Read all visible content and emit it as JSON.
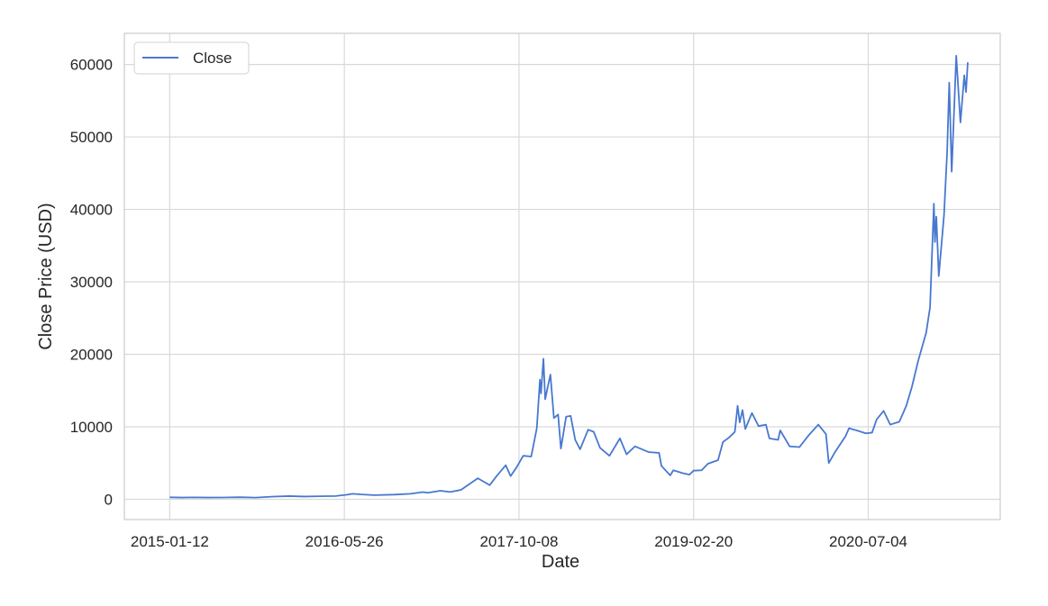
{
  "chart_data": {
    "type": "line",
    "title": "",
    "xlabel": "Date",
    "ylabel": "Close Price (USD)",
    "x_tick_labels": [
      "2015-01-12",
      "2016-05-26",
      "2017-10-08",
      "2019-02-20",
      "2020-07-04"
    ],
    "y_tick_labels": [
      "0",
      "10000",
      "20000",
      "30000",
      "40000",
      "50000",
      "60000"
    ],
    "xlim": [
      "2014-09-04",
      "2021-07-17"
    ],
    "ylim": [
      -2800,
      64300
    ],
    "grid": true,
    "legend_position": "top-left",
    "series": [
      {
        "name": "Close",
        "color": "#4878d0",
        "points": [
          [
            "2015-01-12",
            267
          ],
          [
            "2015-02-15",
            234
          ],
          [
            "2015-03-20",
            261
          ],
          [
            "2015-05-01",
            236
          ],
          [
            "2015-06-15",
            245
          ],
          [
            "2015-08-01",
            280
          ],
          [
            "2015-09-15",
            230
          ],
          [
            "2015-11-05",
            370
          ],
          [
            "2015-12-20",
            440
          ],
          [
            "2016-02-01",
            375
          ],
          [
            "2016-03-15",
            415
          ],
          [
            "2016-05-01",
            450
          ],
          [
            "2016-06-01",
            620
          ],
          [
            "2016-06-18",
            760
          ],
          [
            "2016-07-15",
            660
          ],
          [
            "2016-08-20",
            575
          ],
          [
            "2016-10-15",
            640
          ],
          [
            "2016-12-01",
            760
          ],
          [
            "2017-01-05",
            990
          ],
          [
            "2017-01-20",
            900
          ],
          [
            "2017-02-25",
            1180
          ],
          [
            "2017-03-25",
            1000
          ],
          [
            "2017-04-25",
            1300
          ],
          [
            "2017-05-25",
            2300
          ],
          [
            "2017-06-12",
            2900
          ],
          [
            "2017-07-16",
            1950
          ],
          [
            "2017-08-05",
            3200
          ],
          [
            "2017-08-31",
            4700
          ],
          [
            "2017-09-14",
            3200
          ],
          [
            "2017-10-01",
            4400
          ],
          [
            "2017-10-20",
            6000
          ],
          [
            "2017-11-12",
            5900
          ],
          [
            "2017-11-28",
            9800
          ],
          [
            "2017-12-07",
            16500
          ],
          [
            "2017-12-10",
            14600
          ],
          [
            "2017-12-17",
            19400
          ],
          [
            "2017-12-22",
            13800
          ],
          [
            "2017-12-28",
            15200
          ],
          [
            "2018-01-06",
            17200
          ],
          [
            "2018-01-16",
            11200
          ],
          [
            "2018-01-28",
            11700
          ],
          [
            "2018-02-05",
            7000
          ],
          [
            "2018-02-20",
            11400
          ],
          [
            "2018-03-05",
            11500
          ],
          [
            "2018-03-18",
            8200
          ],
          [
            "2018-04-01",
            6900
          ],
          [
            "2018-04-24",
            9600
          ],
          [
            "2018-05-10",
            9300
          ],
          [
            "2018-05-28",
            7100
          ],
          [
            "2018-06-24",
            6000
          ],
          [
            "2018-07-24",
            8400
          ],
          [
            "2018-08-12",
            6200
          ],
          [
            "2018-09-05",
            7300
          ],
          [
            "2018-10-15",
            6500
          ],
          [
            "2018-11-13",
            6400
          ],
          [
            "2018-11-20",
            4600
          ],
          [
            "2018-12-15",
            3300
          ],
          [
            "2018-12-24",
            4000
          ],
          [
            "2019-01-20",
            3600
          ],
          [
            "2019-02-08",
            3400
          ],
          [
            "2019-02-20",
            3950
          ],
          [
            "2019-03-15",
            4000
          ],
          [
            "2019-04-02",
            4900
          ],
          [
            "2019-05-01",
            5400
          ],
          [
            "2019-05-15",
            7900
          ],
          [
            "2019-06-01",
            8500
          ],
          [
            "2019-06-18",
            9300
          ],
          [
            "2019-06-26",
            12900
          ],
          [
            "2019-07-02",
            10600
          ],
          [
            "2019-07-10",
            12300
          ],
          [
            "2019-07-18",
            9700
          ],
          [
            "2019-08-06",
            11900
          ],
          [
            "2019-08-25",
            10100
          ],
          [
            "2019-09-15",
            10300
          ],
          [
            "2019-09-25",
            8400
          ],
          [
            "2019-10-20",
            8200
          ],
          [
            "2019-10-26",
            9500
          ],
          [
            "2019-11-22",
            7300
          ],
          [
            "2019-12-20",
            7200
          ],
          [
            "2020-01-15",
            8800
          ],
          [
            "2020-02-12",
            10300
          ],
          [
            "2020-03-05",
            9000
          ],
          [
            "2020-03-13",
            5000
          ],
          [
            "2020-04-01",
            6600
          ],
          [
            "2020-04-30",
            8700
          ],
          [
            "2020-05-10",
            9800
          ],
          [
            "2020-06-01",
            9500
          ],
          [
            "2020-06-27",
            9100
          ],
          [
            "2020-07-15",
            9200
          ],
          [
            "2020-07-28",
            11000
          ],
          [
            "2020-08-17",
            12200
          ],
          [
            "2020-09-05",
            10300
          ],
          [
            "2020-10-01",
            10700
          ],
          [
            "2020-10-21",
            12900
          ],
          [
            "2020-11-06",
            15500
          ],
          [
            "2020-11-24",
            19100
          ],
          [
            "2020-12-17",
            23000
          ],
          [
            "2020-12-28",
            26500
          ],
          [
            "2021-01-08",
            40800
          ],
          [
            "2021-01-11",
            35500
          ],
          [
            "2021-01-15",
            39000
          ],
          [
            "2021-01-22",
            30800
          ],
          [
            "2021-02-06",
            39200
          ],
          [
            "2021-02-15",
            48000
          ],
          [
            "2021-02-21",
            57500
          ],
          [
            "2021-02-28",
            45200
          ],
          [
            "2021-03-13",
            61200
          ],
          [
            "2021-03-25",
            52000
          ],
          [
            "2021-04-05",
            58500
          ],
          [
            "2021-04-10",
            56200
          ],
          [
            "2021-04-15",
            60300
          ]
        ]
      }
    ]
  }
}
